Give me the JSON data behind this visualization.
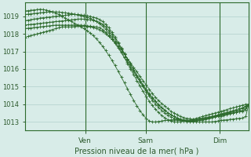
{
  "bg_color": "#d8ece8",
  "grid_color": "#b0d0cc",
  "line_color": "#2d6b2d",
  "marker_color": "#2d6b2d",
  "xlabel_text": "Pression niveau de la mer( hPa )",
  "ylim": [
    1012.5,
    1019.8
  ],
  "yticks": [
    1013,
    1014,
    1015,
    1016,
    1017,
    1018,
    1019
  ],
  "day_labels": [
    "Ven",
    "Sam",
    "Dim"
  ],
  "day_positions": [
    0.27,
    0.54,
    0.87
  ],
  "num_points": 73,
  "series": [
    [
      1017.8,
      1017.85,
      1017.9,
      1017.95,
      1018.0,
      1018.05,
      1018.1,
      1018.15,
      1018.2,
      1018.25,
      1018.3,
      1018.35,
      1018.4,
      1018.4,
      1018.4,
      1018.4,
      1018.42,
      1018.44,
      1018.45,
      1018.44,
      1018.42,
      1018.4,
      1018.35,
      1018.3,
      1018.25,
      1018.15,
      1018.0,
      1017.85,
      1017.7,
      1017.5,
      1017.3,
      1017.1,
      1016.85,
      1016.6,
      1016.35,
      1016.1,
      1015.85,
      1015.6,
      1015.35,
      1015.1,
      1014.85,
      1014.6,
      1014.4,
      1014.2,
      1014.05,
      1013.9,
      1013.75,
      1013.6,
      1013.5,
      1013.4,
      1013.3,
      1013.25,
      1013.2,
      1013.18,
      1013.15,
      1013.2,
      1013.25,
      1013.3,
      1013.35,
      1013.4,
      1013.45,
      1013.5,
      1013.55,
      1013.6,
      1013.65,
      1013.7,
      1013.75,
      1013.8,
      1013.85,
      1013.9,
      1013.95,
      1014.0,
      1014.0
    ],
    [
      1018.3,
      1018.32,
      1018.34,
      1018.36,
      1018.38,
      1018.4,
      1018.42,
      1018.44,
      1018.46,
      1018.48,
      1018.5,
      1018.5,
      1018.5,
      1018.5,
      1018.5,
      1018.5,
      1018.5,
      1018.5,
      1018.5,
      1018.48,
      1018.46,
      1018.44,
      1018.42,
      1018.4,
      1018.35,
      1018.25,
      1018.1,
      1017.9,
      1017.7,
      1017.45,
      1017.2,
      1016.95,
      1016.65,
      1016.4,
      1016.1,
      1015.85,
      1015.55,
      1015.3,
      1015.05,
      1014.8,
      1014.55,
      1014.35,
      1014.15,
      1013.95,
      1013.8,
      1013.65,
      1013.5,
      1013.4,
      1013.3,
      1013.2,
      1013.15,
      1013.1,
      1013.08,
      1013.06,
      1013.05,
      1013.08,
      1013.1,
      1013.15,
      1013.2,
      1013.25,
      1013.3,
      1013.35,
      1013.4,
      1013.45,
      1013.5,
      1013.55,
      1013.6,
      1013.65,
      1013.7,
      1013.75,
      1013.8,
      1013.9,
      1014.0
    ],
    [
      1018.5,
      1018.52,
      1018.54,
      1018.56,
      1018.58,
      1018.6,
      1018.62,
      1018.64,
      1018.66,
      1018.68,
      1018.7,
      1018.72,
      1018.74,
      1018.76,
      1018.78,
      1018.8,
      1018.82,
      1018.84,
      1018.85,
      1018.84,
      1018.82,
      1018.8,
      1018.76,
      1018.72,
      1018.65,
      1018.55,
      1018.4,
      1018.2,
      1017.98,
      1017.72,
      1017.45,
      1017.15,
      1016.85,
      1016.55,
      1016.25,
      1015.95,
      1015.65,
      1015.4,
      1015.1,
      1014.85,
      1014.6,
      1014.38,
      1014.18,
      1013.98,
      1013.82,
      1013.66,
      1013.52,
      1013.4,
      1013.3,
      1013.22,
      1013.16,
      1013.12,
      1013.1,
      1013.09,
      1013.08,
      1013.1,
      1013.12,
      1013.16,
      1013.2,
      1013.24,
      1013.28,
      1013.32,
      1013.36,
      1013.4,
      1013.45,
      1013.5,
      1013.55,
      1013.6,
      1013.65,
      1013.7,
      1013.75,
      1013.85,
      1014.0
    ],
    [
      1018.75,
      1018.78,
      1018.81,
      1018.84,
      1018.87,
      1018.9,
      1018.92,
      1018.94,
      1018.96,
      1018.98,
      1019.0,
      1019.02,
      1019.04,
      1019.06,
      1019.08,
      1019.1,
      1019.1,
      1019.1,
      1019.08,
      1019.06,
      1019.03,
      1019.0,
      1018.95,
      1018.9,
      1018.82,
      1018.7,
      1018.55,
      1018.35,
      1018.1,
      1017.82,
      1017.52,
      1017.22,
      1016.9,
      1016.58,
      1016.26,
      1015.94,
      1015.62,
      1015.3,
      1015.0,
      1014.72,
      1014.46,
      1014.22,
      1014.0,
      1013.82,
      1013.65,
      1013.5,
      1013.38,
      1013.28,
      1013.2,
      1013.14,
      1013.1,
      1013.07,
      1013.06,
      1013.05,
      1013.05,
      1013.07,
      1013.09,
      1013.12,
      1013.15,
      1013.18,
      1013.22,
      1013.26,
      1013.3,
      1013.34,
      1013.38,
      1013.42,
      1013.46,
      1013.5,
      1013.55,
      1013.6,
      1013.65,
      1013.75,
      1014.0
    ],
    [
      1019.1,
      1019.12,
      1019.14,
      1019.16,
      1019.18,
      1019.2,
      1019.22,
      1019.24,
      1019.25,
      1019.25,
      1019.25,
      1019.24,
      1019.22,
      1019.2,
      1019.18,
      1019.15,
      1019.12,
      1019.08,
      1019.04,
      1019.0,
      1018.95,
      1018.88,
      1018.8,
      1018.7,
      1018.58,
      1018.44,
      1018.27,
      1018.07,
      1017.83,
      1017.57,
      1017.28,
      1016.98,
      1016.65,
      1016.33,
      1016.0,
      1015.68,
      1015.35,
      1015.04,
      1014.73,
      1014.44,
      1014.17,
      1013.93,
      1013.72,
      1013.53,
      1013.37,
      1013.23,
      1013.12,
      1013.04,
      1013.0,
      1013.0,
      1013.01,
      1013.04,
      1013.07,
      1013.1,
      1013.13,
      1013.16,
      1013.19,
      1013.22,
      1013.25,
      1013.28,
      1013.31,
      1013.34,
      1013.37,
      1013.4,
      1013.43,
      1013.46,
      1013.49,
      1013.52,
      1013.55,
      1013.58,
      1013.61,
      1013.7,
      1014.0
    ],
    [
      1019.3,
      1019.32,
      1019.34,
      1019.36,
      1019.38,
      1019.4,
      1019.38,
      1019.35,
      1019.3,
      1019.25,
      1019.18,
      1019.1,
      1019.0,
      1018.9,
      1018.8,
      1018.7,
      1018.6,
      1018.5,
      1018.4,
      1018.3,
      1018.18,
      1018.05,
      1017.9,
      1017.72,
      1017.52,
      1017.3,
      1017.05,
      1016.78,
      1016.5,
      1016.2,
      1015.88,
      1015.55,
      1015.22,
      1014.88,
      1014.55,
      1014.22,
      1013.92,
      1013.65,
      1013.4,
      1013.2,
      1013.05,
      1013.0,
      1013.0,
      1013.02,
      1013.05,
      1013.08,
      1013.1,
      1013.12,
      1013.12,
      1013.1,
      1013.08,
      1013.05,
      1013.02,
      1013.0,
      1013.0,
      1013.0,
      1013.0,
      1013.0,
      1013.0,
      1013.0,
      1013.0,
      1013.02,
      1013.05,
      1013.08,
      1013.1,
      1013.12,
      1013.14,
      1013.16,
      1013.18,
      1013.2,
      1013.22,
      1013.3,
      1014.0
    ]
  ]
}
